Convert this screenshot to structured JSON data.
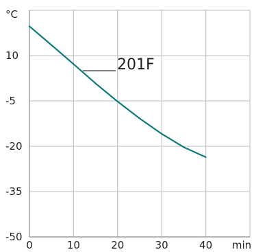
{
  "chart_data": {
    "type": "line",
    "x_unit": "min",
    "y_unit": "°C",
    "x_ticks": [
      0,
      10,
      20,
      30,
      40
    ],
    "y_ticks": [
      10,
      -5,
      -20,
      -35,
      -50
    ],
    "xlim": [
      0,
      50
    ],
    "ylim": [
      -50,
      25
    ],
    "grid": true,
    "series": [
      {
        "name": "201F",
        "color": "#0f7a7a",
        "x": [
          0,
          5,
          10,
          15,
          20,
          25,
          30,
          35,
          40
        ],
        "y": [
          19.7,
          13.5,
          7.2,
          0.8,
          -5.2,
          -10.8,
          -15.9,
          -20.3,
          -23.6
        ]
      }
    ]
  },
  "colors": {
    "grid": "#bdbdbd",
    "axis": "#8a8a8a",
    "curve": "#0f7a7a",
    "label_line": "#333333"
  }
}
